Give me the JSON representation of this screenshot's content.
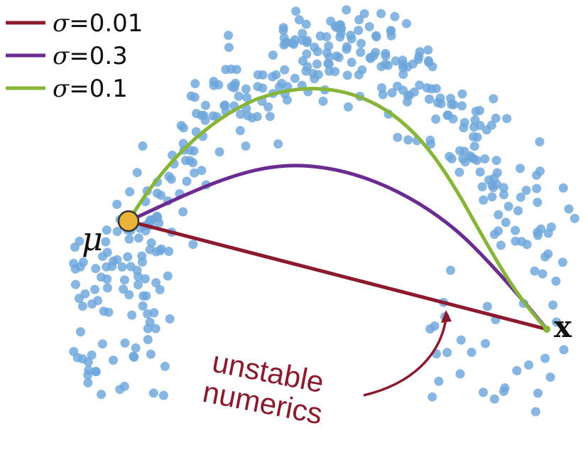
{
  "legend": [
    {
      "symbol": "σ",
      "value": "=0.01",
      "color": "#8b1a2f"
    },
    {
      "symbol": "σ",
      "value": "=0.3",
      "color": "#6b2c91"
    },
    {
      "symbol": "σ",
      "value": "=0.1",
      "color": "#86b53a"
    }
  ],
  "labels": {
    "start": "μ",
    "end": "x"
  },
  "annotation": {
    "line1": "unstable",
    "line2": "numerics",
    "color": "#8b1a2f"
  },
  "colors": {
    "points": "#6ea6dc",
    "mu_fill": "#e8b338",
    "mu_stroke": "#333333"
  }
}
